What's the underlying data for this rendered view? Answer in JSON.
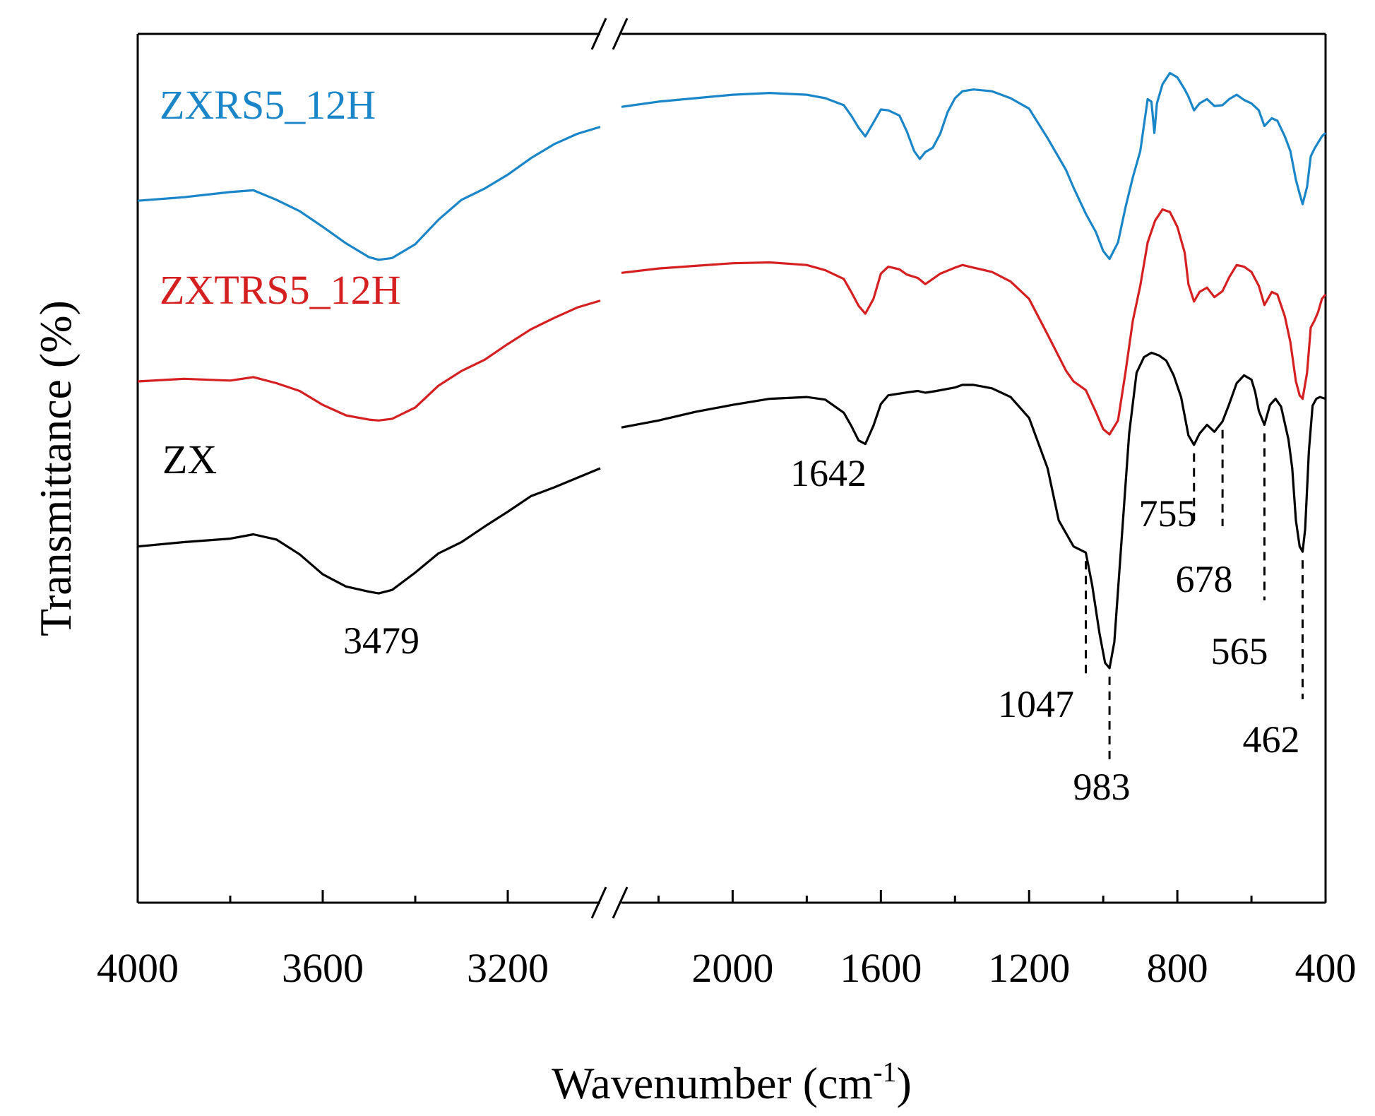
{
  "chart_data": {
    "type": "line",
    "title": "",
    "xlabel": "Wavenumber (cm",
    "xlabel_sup": "-1",
    "xlabel_suffix": ")",
    "ylabel": "Transmittance (%)",
    "x_reversed": true,
    "x_break": {
      "left_segment": [
        4000,
        3000
      ],
      "right_segment": [
        2300,
        400
      ]
    },
    "x_ticks_left": [
      4000,
      3600,
      3200
    ],
    "x_ticks_right": [
      2000,
      1600,
      1200,
      800,
      400
    ],
    "x_tick_labels": [
      "4000",
      "3600",
      "3200",
      "2000",
      "1600",
      "1200",
      "800",
      "400"
    ],
    "y_axis_ticks": "none",
    "y_range": [
      0,
      100
    ],
    "series": [
      {
        "name": "ZXRS5_12H",
        "color": "#1a86c8",
        "points": [
          [
            4000,
            80.8
          ],
          [
            3900,
            81.2
          ],
          [
            3800,
            81.8
          ],
          [
            3750,
            82.0
          ],
          [
            3700,
            80.9
          ],
          [
            3650,
            79.6
          ],
          [
            3600,
            77.8
          ],
          [
            3550,
            75.9
          ],
          [
            3500,
            74.3
          ],
          [
            3479,
            74.0
          ],
          [
            3450,
            74.2
          ],
          [
            3400,
            75.8
          ],
          [
            3350,
            78.6
          ],
          [
            3300,
            80.9
          ],
          [
            3250,
            82.2
          ],
          [
            3200,
            83.8
          ],
          [
            3150,
            85.7
          ],
          [
            3100,
            87.3
          ],
          [
            3050,
            88.5
          ],
          [
            3000,
            89.3
          ],
          [
            2300,
            91.6
          ],
          [
            2200,
            92.2
          ],
          [
            2100,
            92.6
          ],
          [
            2000,
            93.0
          ],
          [
            1900,
            93.2
          ],
          [
            1800,
            93.0
          ],
          [
            1750,
            92.6
          ],
          [
            1700,
            91.8
          ],
          [
            1680,
            90.6
          ],
          [
            1660,
            89.2
          ],
          [
            1642,
            88.2
          ],
          [
            1620,
            89.8
          ],
          [
            1600,
            91.3
          ],
          [
            1580,
            91.2
          ],
          [
            1550,
            90.6
          ],
          [
            1530,
            88.8
          ],
          [
            1510,
            86.5
          ],
          [
            1495,
            85.6
          ],
          [
            1480,
            86.4
          ],
          [
            1460,
            86.9
          ],
          [
            1440,
            88.5
          ],
          [
            1420,
            91.0
          ],
          [
            1400,
            92.6
          ],
          [
            1380,
            93.4
          ],
          [
            1350,
            93.6
          ],
          [
            1300,
            93.4
          ],
          [
            1250,
            92.6
          ],
          [
            1200,
            91.4
          ],
          [
            1150,
            88.0
          ],
          [
            1100,
            84.3
          ],
          [
            1080,
            82.3
          ],
          [
            1047,
            79.3
          ],
          [
            1020,
            77.2
          ],
          [
            1000,
            75.0
          ],
          [
            983,
            74.1
          ],
          [
            960,
            76.0
          ],
          [
            940,
            80.0
          ],
          [
            920,
            83.5
          ],
          [
            900,
            86.5
          ],
          [
            880,
            92.5
          ],
          [
            870,
            92.2
          ],
          [
            862,
            88.6
          ],
          [
            855,
            92.0
          ],
          [
            840,
            94.2
          ],
          [
            820,
            95.5
          ],
          [
            800,
            95.0
          ],
          [
            780,
            93.6
          ],
          [
            770,
            92.8
          ],
          [
            755,
            91.2
          ],
          [
            740,
            92.0
          ],
          [
            720,
            92.5
          ],
          [
            700,
            91.7
          ],
          [
            678,
            91.8
          ],
          [
            660,
            92.5
          ],
          [
            640,
            93.0
          ],
          [
            620,
            92.4
          ],
          [
            600,
            92.0
          ],
          [
            580,
            91.2
          ],
          [
            565,
            89.4
          ],
          [
            545,
            90.3
          ],
          [
            530,
            90.0
          ],
          [
            510,
            88.2
          ],
          [
            495,
            86.5
          ],
          [
            480,
            83.2
          ],
          [
            470,
            81.6
          ],
          [
            462,
            80.4
          ],
          [
            450,
            82.4
          ],
          [
            440,
            85.9
          ],
          [
            430,
            86.8
          ],
          [
            420,
            87.5
          ],
          [
            410,
            88.2
          ],
          [
            400,
            88.6
          ]
        ]
      },
      {
        "name": "ZXTRS5_12H",
        "color": "#d42020",
        "points": [
          [
            4000,
            60.0
          ],
          [
            3900,
            60.3
          ],
          [
            3800,
            60.1
          ],
          [
            3750,
            60.5
          ],
          [
            3700,
            59.8
          ],
          [
            3650,
            58.9
          ],
          [
            3600,
            57.3
          ],
          [
            3550,
            56.1
          ],
          [
            3500,
            55.6
          ],
          [
            3479,
            55.5
          ],
          [
            3450,
            55.7
          ],
          [
            3400,
            57.0
          ],
          [
            3350,
            59.5
          ],
          [
            3300,
            61.2
          ],
          [
            3250,
            62.5
          ],
          [
            3200,
            64.3
          ],
          [
            3150,
            66.0
          ],
          [
            3100,
            67.3
          ],
          [
            3050,
            68.5
          ],
          [
            3000,
            69.3
          ],
          [
            2300,
            72.5
          ],
          [
            2200,
            73.0
          ],
          [
            2100,
            73.3
          ],
          [
            2000,
            73.6
          ],
          [
            1900,
            73.7
          ],
          [
            1800,
            73.4
          ],
          [
            1750,
            72.8
          ],
          [
            1700,
            71.8
          ],
          [
            1680,
            70.3
          ],
          [
            1660,
            68.7
          ],
          [
            1642,
            67.8
          ],
          [
            1620,
            69.5
          ],
          [
            1600,
            72.4
          ],
          [
            1580,
            73.2
          ],
          [
            1550,
            72.9
          ],
          [
            1530,
            72.3
          ],
          [
            1500,
            71.9
          ],
          [
            1480,
            71.2
          ],
          [
            1460,
            71.8
          ],
          [
            1440,
            72.4
          ],
          [
            1400,
            73.1
          ],
          [
            1380,
            73.4
          ],
          [
            1350,
            73.1
          ],
          [
            1300,
            72.6
          ],
          [
            1250,
            71.5
          ],
          [
            1200,
            69.5
          ],
          [
            1150,
            65.4
          ],
          [
            1100,
            61.2
          ],
          [
            1080,
            60.0
          ],
          [
            1047,
            59.0
          ],
          [
            1020,
            56.5
          ],
          [
            1000,
            54.5
          ],
          [
            983,
            53.9
          ],
          [
            960,
            55.5
          ],
          [
            940,
            61.0
          ],
          [
            920,
            67.0
          ],
          [
            900,
            71.0
          ],
          [
            880,
            76.0
          ],
          [
            860,
            78.5
          ],
          [
            840,
            79.8
          ],
          [
            820,
            79.5
          ],
          [
            800,
            77.8
          ],
          [
            780,
            74.8
          ],
          [
            770,
            71.2
          ],
          [
            755,
            69.2
          ],
          [
            740,
            70.3
          ],
          [
            720,
            70.8
          ],
          [
            700,
            69.7
          ],
          [
            678,
            70.4
          ],
          [
            660,
            72.0
          ],
          [
            640,
            73.4
          ],
          [
            620,
            73.2
          ],
          [
            600,
            72.6
          ],
          [
            580,
            71.0
          ],
          [
            565,
            68.8
          ],
          [
            545,
            70.3
          ],
          [
            530,
            70.0
          ],
          [
            510,
            67.5
          ],
          [
            495,
            64.5
          ],
          [
            480,
            60.0
          ],
          [
            470,
            58.4
          ],
          [
            462,
            58.0
          ],
          [
            450,
            61.0
          ],
          [
            440,
            66.2
          ],
          [
            430,
            67.0
          ],
          [
            420,
            68.0
          ],
          [
            410,
            69.5
          ],
          [
            400,
            70.0
          ]
        ]
      },
      {
        "name": "ZX",
        "color": "#000000",
        "points": [
          [
            4000,
            41.0
          ],
          [
            3900,
            41.5
          ],
          [
            3800,
            41.9
          ],
          [
            3750,
            42.4
          ],
          [
            3700,
            41.8
          ],
          [
            3650,
            40.1
          ],
          [
            3600,
            37.8
          ],
          [
            3550,
            36.4
          ],
          [
            3500,
            35.8
          ],
          [
            3479,
            35.6
          ],
          [
            3450,
            36.0
          ],
          [
            3400,
            38.0
          ],
          [
            3350,
            40.2
          ],
          [
            3300,
            41.5
          ],
          [
            3250,
            43.3
          ],
          [
            3200,
            45.0
          ],
          [
            3150,
            46.8
          ],
          [
            3100,
            47.8
          ],
          [
            3050,
            48.9
          ],
          [
            3000,
            50.0
          ],
          [
            2300,
            54.7
          ],
          [
            2200,
            55.5
          ],
          [
            2100,
            56.5
          ],
          [
            2000,
            57.3
          ],
          [
            1900,
            58.0
          ],
          [
            1800,
            58.2
          ],
          [
            1750,
            57.9
          ],
          [
            1700,
            56.4
          ],
          [
            1680,
            54.9
          ],
          [
            1660,
            53.2
          ],
          [
            1642,
            52.8
          ],
          [
            1620,
            54.9
          ],
          [
            1600,
            57.4
          ],
          [
            1580,
            58.4
          ],
          [
            1550,
            58.6
          ],
          [
            1520,
            58.8
          ],
          [
            1500,
            58.9
          ],
          [
            1480,
            58.7
          ],
          [
            1450,
            58.9
          ],
          [
            1400,
            59.3
          ],
          [
            1380,
            59.6
          ],
          [
            1350,
            59.6
          ],
          [
            1300,
            59.2
          ],
          [
            1250,
            58.2
          ],
          [
            1200,
            55.8
          ],
          [
            1150,
            50.0
          ],
          [
            1120,
            44.0
          ],
          [
            1100,
            42.5
          ],
          [
            1080,
            41.0
          ],
          [
            1047,
            40.3
          ],
          [
            1030,
            36.6
          ],
          [
            1010,
            31.0
          ],
          [
            995,
            27.6
          ],
          [
            983,
            27.0
          ],
          [
            970,
            30.0
          ],
          [
            950,
            42.0
          ],
          [
            930,
            54.0
          ],
          [
            910,
            61.0
          ],
          [
            890,
            62.8
          ],
          [
            870,
            63.3
          ],
          [
            850,
            63.0
          ],
          [
            830,
            62.4
          ],
          [
            810,
            60.7
          ],
          [
            790,
            58.2
          ],
          [
            770,
            53.8
          ],
          [
            755,
            52.7
          ],
          [
            740,
            54.0
          ],
          [
            720,
            55.0
          ],
          [
            700,
            54.2
          ],
          [
            678,
            55.4
          ],
          [
            660,
            57.4
          ],
          [
            640,
            59.8
          ],
          [
            620,
            60.7
          ],
          [
            600,
            60.2
          ],
          [
            590,
            58.8
          ],
          [
            580,
            56.6
          ],
          [
            565,
            55.0
          ],
          [
            550,
            57.3
          ],
          [
            535,
            58.0
          ],
          [
            520,
            57.1
          ],
          [
            500,
            53.3
          ],
          [
            490,
            50.0
          ],
          [
            480,
            44.0
          ],
          [
            470,
            41.0
          ],
          [
            462,
            40.4
          ],
          [
            455,
            43.0
          ],
          [
            445,
            52.0
          ],
          [
            435,
            57.2
          ],
          [
            425,
            58.0
          ],
          [
            415,
            58.2
          ],
          [
            400,
            58.0
          ]
        ]
      }
    ],
    "series_labels": [
      "ZXRS5_12H",
      "ZXTRS5_12H",
      "ZX"
    ],
    "annotations": [
      {
        "label": "3479",
        "x": 3479,
        "guide": false
      },
      {
        "label": "1642",
        "x": 1642,
        "guide": false
      },
      {
        "label": "1047",
        "x": 1047,
        "guide": true
      },
      {
        "label": "983",
        "x": 983,
        "guide": true
      },
      {
        "label": "755",
        "x": 755,
        "guide": true
      },
      {
        "label": "678",
        "x": 678,
        "guide": true
      },
      {
        "label": "565",
        "x": 565,
        "guide": true
      },
      {
        "label": "462",
        "x": 462,
        "guide": true
      }
    ]
  }
}
